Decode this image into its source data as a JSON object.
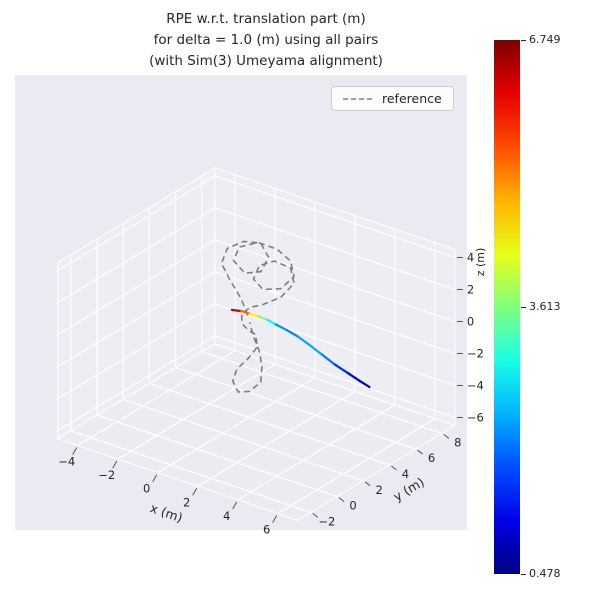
{
  "chart_data": {
    "type": "line",
    "projection": "3d",
    "title_lines": [
      "RPE w.r.t. translation part (m)",
      "for delta = 1.0 (m) using all pairs",
      "(with Sim(3) Umeyama alignment)"
    ],
    "legend": [
      "reference"
    ],
    "xlabel": "x (m)",
    "ylabel": "y (m)",
    "zlabel": "z (m)",
    "xticks": [
      -4,
      -2,
      0,
      2,
      4,
      6
    ],
    "yticks": [
      -2,
      0,
      2,
      4,
      6,
      8
    ],
    "zticks": [
      4,
      2,
      0,
      -2,
      -4,
      -6
    ],
    "xlim": [
      -5,
      7
    ],
    "ylim": [
      -3,
      9
    ],
    "zlim": [
      -6.5,
      4.5
    ],
    "grid": true,
    "background_color": "#eaeaf2",
    "reference_color": "#7f7f7f",
    "colorbar": {
      "colormap": "jet",
      "min": 0.478,
      "mid": 3.613,
      "max": 6.749,
      "tick_labels": [
        "6.749",
        "3.613",
        "0.478"
      ]
    },
    "series": [
      {
        "name": "reference",
        "style": "dashed",
        "color": "#7f7f7f",
        "points": [
          [
            0.9,
            2.5,
            1.0
          ],
          [
            0.3,
            2.9,
            1.6
          ],
          [
            -0.4,
            3.1,
            2.4
          ],
          [
            -1.0,
            3.4,
            3.0
          ],
          [
            -1.1,
            4.0,
            3.6
          ],
          [
            -0.6,
            4.5,
            4.0
          ],
          [
            0.1,
            4.7,
            4.1
          ],
          [
            0.7,
            4.4,
            3.6
          ],
          [
            0.7,
            3.8,
            3.0
          ],
          [
            0.1,
            3.5,
            2.8
          ],
          [
            -0.6,
            3.7,
            3.2
          ],
          [
            -0.7,
            4.3,
            3.7
          ],
          [
            -0.1,
            4.8,
            4.0
          ],
          [
            0.8,
            4.9,
            3.9
          ],
          [
            1.6,
            4.7,
            3.6
          ],
          [
            2.1,
            4.2,
            3.1
          ],
          [
            1.9,
            3.5,
            2.6
          ],
          [
            1.2,
            3.2,
            2.4
          ],
          [
            0.6,
            3.4,
            2.7
          ],
          [
            0.5,
            4.0,
            3.2
          ],
          [
            1.0,
            4.4,
            3.5
          ],
          [
            1.8,
            4.4,
            3.4
          ],
          [
            2.3,
            3.9,
            2.9
          ],
          [
            2.1,
            3.2,
            2.3
          ],
          [
            1.5,
            2.8,
            1.8
          ],
          [
            0.9,
            2.7,
            1.4
          ],
          [
            0.6,
            2.5,
            1.0
          ],
          [
            0.8,
            2.2,
            0.6
          ],
          [
            1.2,
            2.1,
            0.4
          ],
          [
            1.5,
            2.2,
            0.2
          ],
          [
            1.7,
            2.0,
            -0.4
          ],
          [
            1.5,
            1.6,
            -1.0
          ],
          [
            1.2,
            1.2,
            -1.6
          ],
          [
            1.2,
            0.9,
            -2.2
          ],
          [
            1.6,
            0.7,
            -2.6
          ],
          [
            2.1,
            0.8,
            -2.4
          ],
          [
            2.4,
            1.2,
            -1.9
          ],
          [
            2.2,
            1.6,
            -1.2
          ],
          [
            1.8,
            2.0,
            -0.6
          ],
          [
            1.3,
            2.3,
            0.0
          ],
          [
            1.0,
            2.5,
            0.6
          ]
        ]
      },
      {
        "name": "estimate_rpe_mapped",
        "style": "solid",
        "colormap": "jet",
        "points_xyz_value": [
          [
            0.1,
            2.5,
            1.0,
            6.7
          ],
          [
            0.5,
            2.6,
            1.05,
            5.8
          ],
          [
            0.9,
            2.65,
            1.05,
            4.9
          ],
          [
            1.3,
            2.7,
            1.0,
            4.0
          ],
          [
            1.7,
            2.75,
            0.95,
            3.2
          ],
          [
            2.1,
            2.8,
            0.8,
            2.4
          ],
          [
            2.6,
            2.9,
            0.6,
            1.9
          ],
          [
            3.1,
            3.0,
            0.35,
            2.2
          ],
          [
            3.6,
            3.1,
            0.0,
            2.4
          ],
          [
            4.1,
            3.3,
            -0.5,
            2.2
          ],
          [
            4.6,
            3.5,
            -1.0,
            1.8
          ],
          [
            5.1,
            3.7,
            -1.4,
            1.3
          ],
          [
            5.6,
            3.85,
            -1.75,
            0.9
          ],
          [
            6.0,
            4.0,
            -2.05,
            0.48
          ]
        ]
      }
    ]
  }
}
